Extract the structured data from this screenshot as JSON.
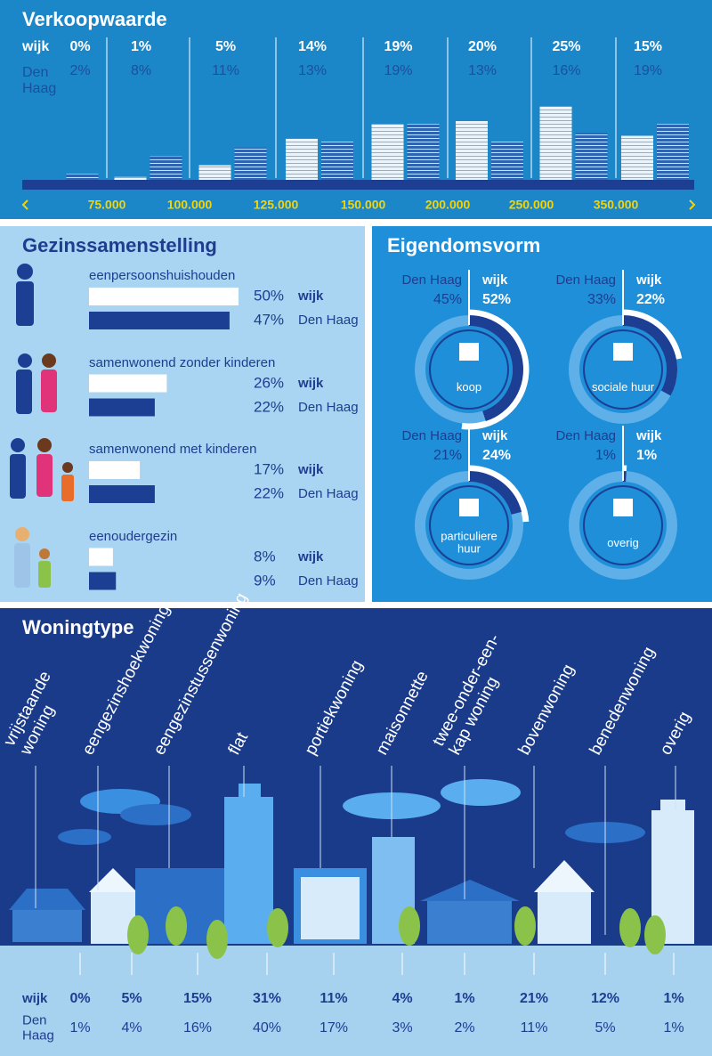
{
  "verkoopwaarde": {
    "title": "Verkoopwaarde",
    "wijk_label": "wijk",
    "den_haag_label": "Den Haag",
    "wijk": [
      0,
      1,
      5,
      14,
      19,
      20,
      25,
      15
    ],
    "wijk_labels": [
      "0%",
      "1%",
      "5%",
      "14%",
      "19%",
      "20%",
      "25%",
      "15%"
    ],
    "den_haag": [
      2,
      8,
      11,
      13,
      19,
      13,
      16,
      19
    ],
    "den_haag_labels": [
      "2%",
      "8%",
      "11%",
      "13%",
      "19%",
      "13%",
      "16%",
      "19%"
    ],
    "price_ticks": [
      "75.000",
      "100.000",
      "125.000",
      "150.000",
      "200.000",
      "250.000",
      "350.000"
    ]
  },
  "gezinssamenstelling": {
    "title": "Gezinssamenstelling",
    "wijk_label": "wijk",
    "den_haag_label": "Den Haag",
    "groups": [
      {
        "label": "eenpersoonshuishouden",
        "wijk": 50,
        "wijk_label": "50%",
        "den_haag": 47,
        "den_haag_label": "47%"
      },
      {
        "label": "samenwonend zonder kinderen",
        "wijk": 26,
        "wijk_label": "26%",
        "den_haag": 22,
        "den_haag_label": "22%"
      },
      {
        "label": "samenwonend met kinderen",
        "wijk": 17,
        "wijk_label": "17%",
        "den_haag": 22,
        "den_haag_label": "22%"
      },
      {
        "label": "eenoudergezin",
        "wijk": 8,
        "wijk_label": "8%",
        "den_haag": 9,
        "den_haag_label": "9%"
      }
    ]
  },
  "eigendomsvorm": {
    "title": "Eigendomsvorm",
    "wijk_label": "wijk",
    "den_haag_label": "Den Haag",
    "items": [
      {
        "label": "koop",
        "den_haag": 45,
        "den_haag_label": "45%",
        "wijk": 52,
        "wijk_label": "52%"
      },
      {
        "label": "sociale huur",
        "den_haag": 33,
        "den_haag_label": "33%",
        "wijk": 22,
        "wijk_label": "22%"
      },
      {
        "label": "particuliere huur",
        "den_haag": 21,
        "den_haag_label": "21%",
        "wijk": 24,
        "wijk_label": "24%"
      },
      {
        "label": "overig",
        "den_haag": 1,
        "den_haag_label": "1%",
        "wijk": 1,
        "wijk_label": "1%"
      }
    ]
  },
  "woningtype": {
    "title": "Woningtype",
    "wijk_label": "wijk",
    "den_haag_label": "Den Haag",
    "types": [
      {
        "label": "vrijstaande woning",
        "wijk": "0%",
        "den_haag": "1%"
      },
      {
        "label": "eengezinshoekwoning",
        "wijk": "5%",
        "den_haag": "4%"
      },
      {
        "label": "eengezinstussenwoning",
        "wijk": "15%",
        "den_haag": "16%"
      },
      {
        "label": "flat",
        "wijk": "31%",
        "den_haag": "40%"
      },
      {
        "label": "portiekwoning",
        "wijk": "11%",
        "den_haag": "17%"
      },
      {
        "label": "maisonnette",
        "wijk": "4%",
        "den_haag": "3%"
      },
      {
        "label": "twee-onder-een-kap woning",
        "wijk": "1%",
        "den_haag": "2%"
      },
      {
        "label": "bovenwoning",
        "wijk": "21%",
        "den_haag": "11%"
      },
      {
        "label": "benedenwoning",
        "wijk": "12%",
        "den_haag": "5%"
      },
      {
        "label": "overig",
        "wijk": "1%",
        "den_haag": "1%"
      }
    ]
  }
}
